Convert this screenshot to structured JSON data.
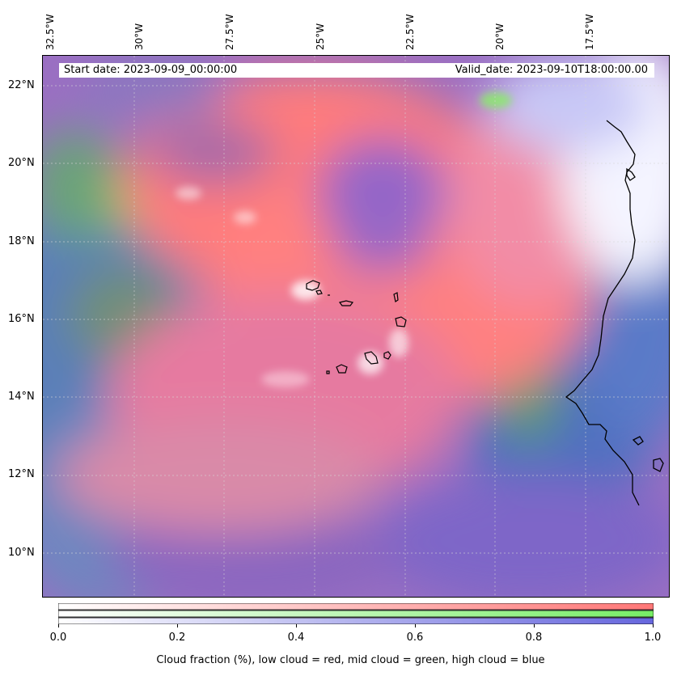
{
  "map": {
    "start_date": "Start date: 2023-09-09_00:00:00",
    "valid_date": "Valid_date: 2023-09-10T18:00:00.00",
    "lon_labels": [
      "32.5°W",
      "30°W",
      "27.5°W",
      "25°W",
      "22.5°W",
      "20°W",
      "17.5°W"
    ],
    "lat_labels": [
      "22°N",
      "20°N",
      "18°N",
      "16°N",
      "14°N",
      "12°N",
      "10°N"
    ],
    "colors": {
      "low_cloud": "#ff7777",
      "mid_cloud": "#77ee66",
      "high_cloud": "#6666dd"
    }
  },
  "colorbar": {
    "caption": "Cloud fraction (%), low cloud = red, mid cloud = green, high cloud = blue",
    "ticks": [
      "0.0",
      "0.2",
      "0.4",
      "0.6",
      "0.8",
      "1.0"
    ],
    "range": [
      0,
      1
    ]
  }
}
